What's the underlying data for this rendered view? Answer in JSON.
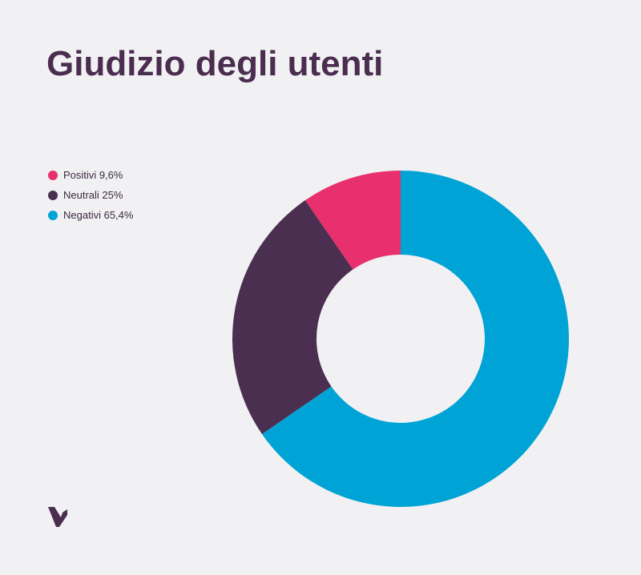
{
  "chart_data": {
    "type": "donut",
    "title": "Giudizio degli utenti",
    "categories": [
      "Positivi",
      "Neutrali",
      "Negativi"
    ],
    "values": [
      9.6,
      25,
      65.4
    ],
    "value_labels": [
      "9,6%",
      "25%",
      "65,4%"
    ],
    "colors": [
      "#e8306e",
      "#4a2f50",
      "#00a3d5"
    ],
    "legend": "top-left"
  }
}
